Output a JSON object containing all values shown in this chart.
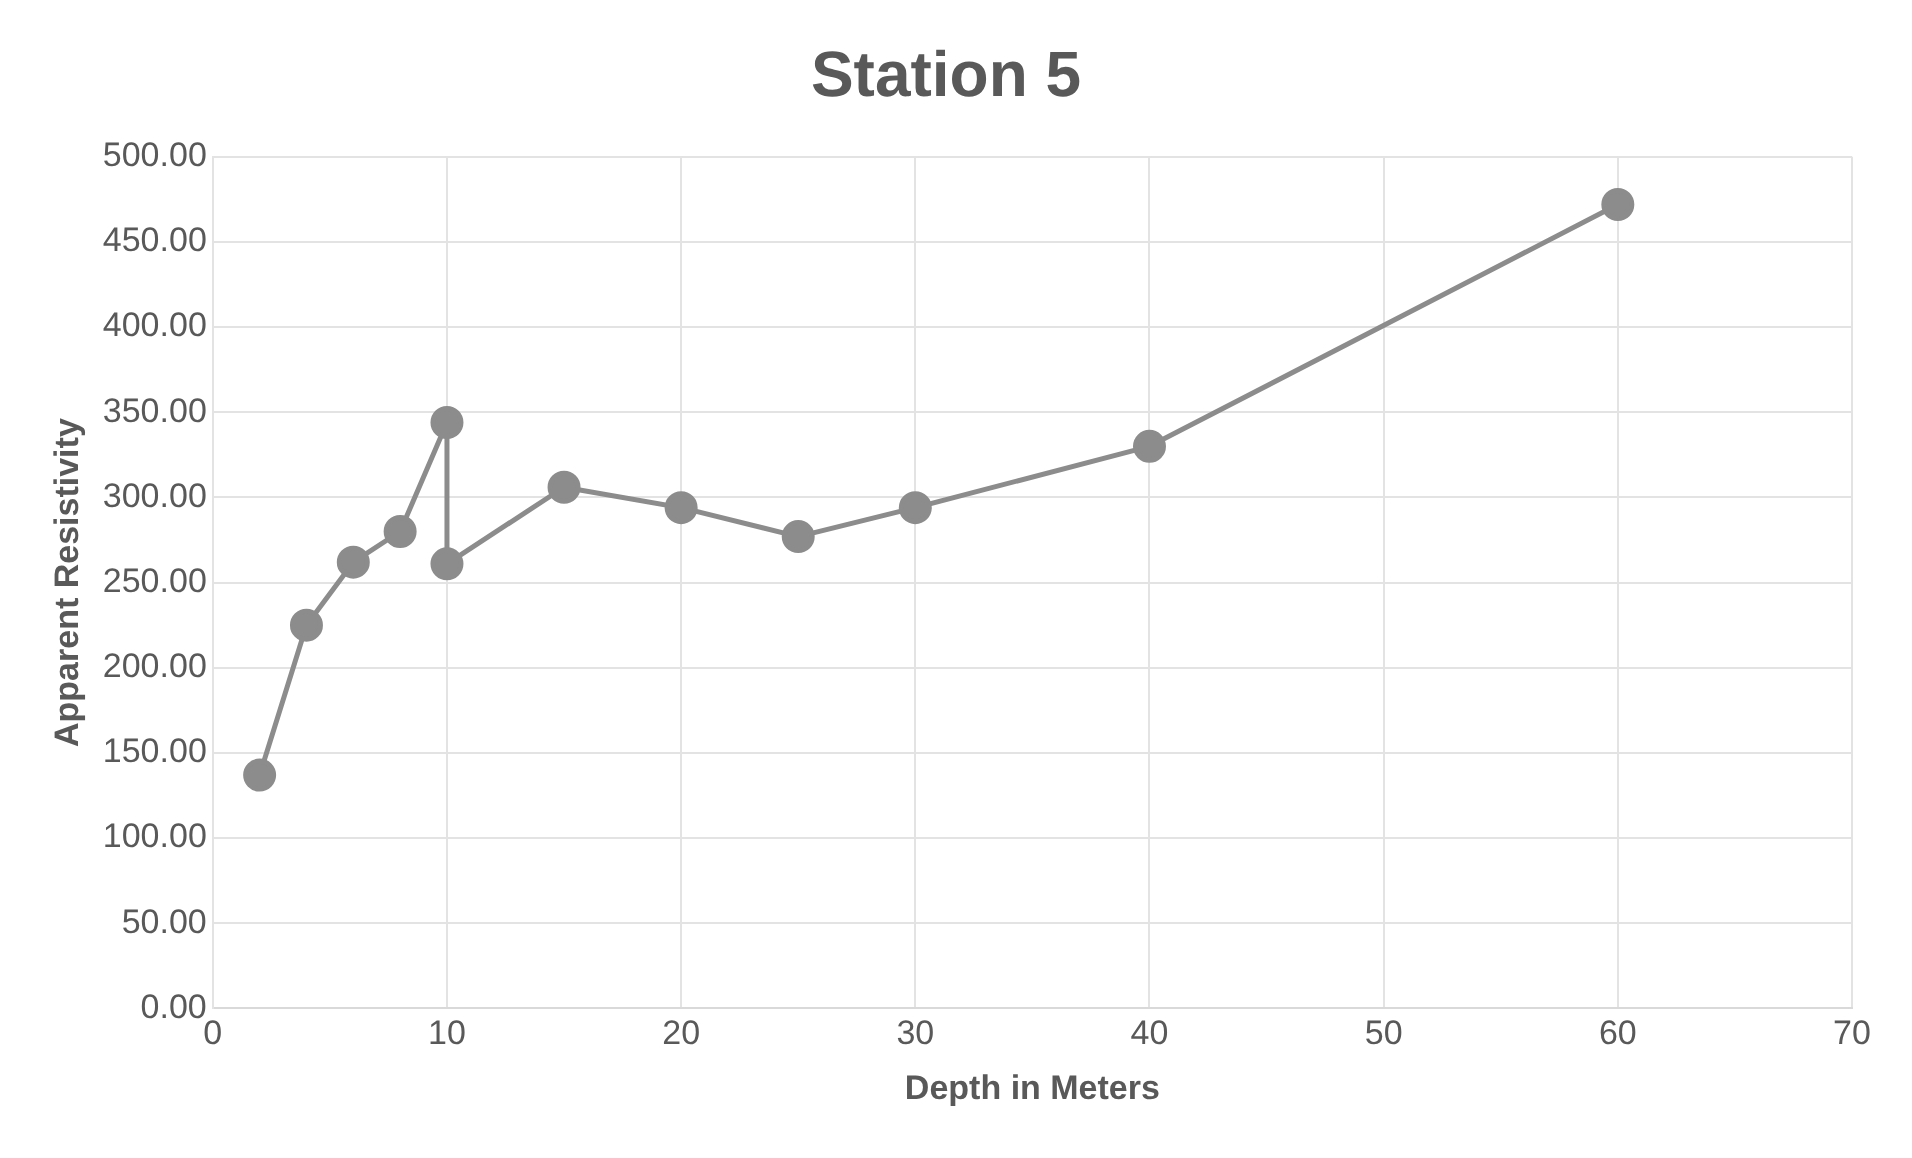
{
  "chart_data": {
    "type": "line",
    "title": "Station 5",
    "xlabel": "Depth in Meters",
    "ylabel": "Apparent Resistivity",
    "series": [
      {
        "color": "#8c8c8c",
        "x": [
          2,
          4,
          6,
          8,
          10,
          10,
          15,
          20,
          25,
          30,
          40,
          60
        ],
        "values": [
          137,
          225,
          262,
          280,
          344,
          261,
          306,
          294,
          277,
          294,
          330,
          472
        ]
      }
    ],
    "xlim": [
      0,
      70
    ],
    "xticks": [
      0,
      10,
      20,
      30,
      40,
      50,
      60,
      70
    ],
    "ylim": [
      0,
      500
    ],
    "yticks": [
      {
        "value": 0,
        "label": "0.00"
      },
      {
        "value": 50,
        "label": "50.00"
      },
      {
        "value": 100,
        "label": "100.00"
      },
      {
        "value": 150,
        "label": "150.00"
      },
      {
        "value": 200,
        "label": "200.00"
      },
      {
        "value": 250,
        "label": "250.00"
      },
      {
        "value": 300,
        "label": "300.00"
      },
      {
        "value": 350,
        "label": "350.00"
      },
      {
        "value": 400,
        "label": "400.00"
      },
      {
        "value": 450,
        "label": "450.00"
      },
      {
        "value": 500,
        "label": "500.00"
      }
    ],
    "grid": true,
    "legend": false,
    "marker": "circle",
    "line_style": "solid"
  }
}
